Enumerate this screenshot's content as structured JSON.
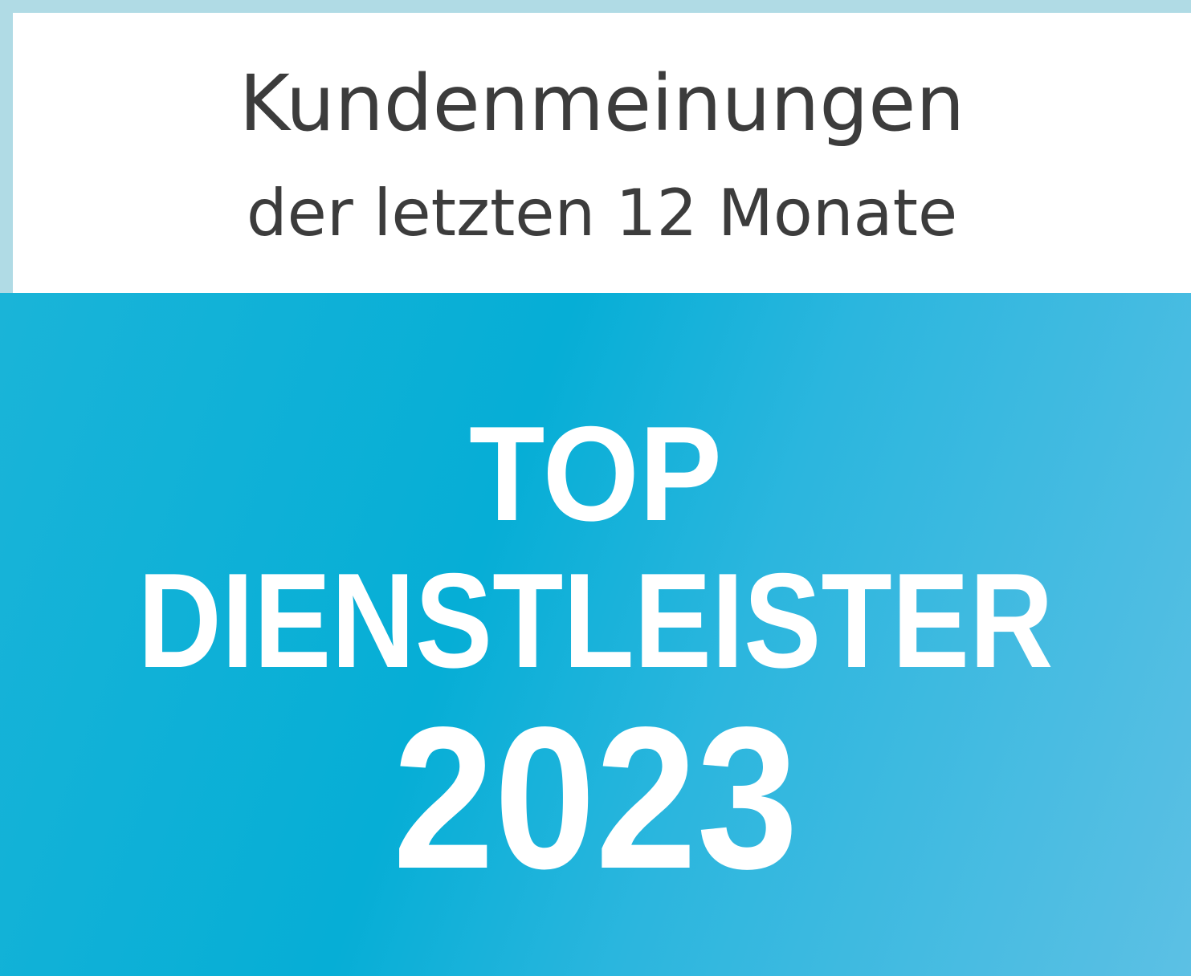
{
  "header": {
    "line1": "Kundenmeinungen",
    "line2": "der letzten 12 Monate"
  },
  "badge": {
    "line1": "TOP",
    "line2": "DIENSTLEISTER",
    "year": "2023"
  },
  "colors": {
    "frame": "#b0dbe5",
    "panel": "#ffffff",
    "text": "#3c3c3c",
    "badge_blue": "#06aed6",
    "badge_blue_light": "#5cc0e4"
  }
}
